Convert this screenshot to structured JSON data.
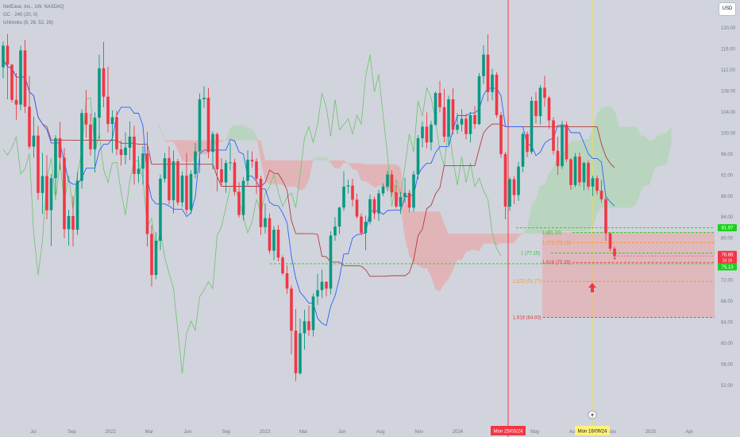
{
  "legend": {
    "symbol_line": "NetEase, Inc., 1W, NASDAQ",
    "indicator_1": "GC · 240 (20, 0)",
    "indicator_2": "Ichimoku (9, 26, 52, 26)"
  },
  "currency_label": "USD",
  "colors": {
    "background": "#d1d4dc",
    "bull_candle": "#089981",
    "bear_candle": "#f23645",
    "cloud_bull": "#a5d6a7",
    "cloud_bear": "#ef9a9a",
    "lagging_line": "#6cc36c",
    "kijun_line": "#b33b3b",
    "tenkan_line": "#2962ff",
    "fib_green": "#1bd11b",
    "fib_orange": "#ff8c1a",
    "fib_red": "#e53935"
  },
  "chart_data": {
    "type": "candlestick",
    "title": "NetEase, Inc., 1W, NASDAQ",
    "y_axis": {
      "ticks": [
        120.0,
        116.0,
        112.0,
        108.0,
        104.0,
        100.0,
        96.0,
        92.0,
        88.0,
        84.0,
        80.0,
        76.0,
        72.0,
        68.0,
        64.0,
        60.0,
        56.0,
        52.0
      ],
      "range": [
        50.0,
        122.0
      ]
    },
    "x_axis": {
      "ticks": [
        "Jul",
        "Sep",
        "2022",
        "Mar",
        "Jun",
        "Sep",
        "2023",
        "Mar",
        "Jun",
        "Aug",
        "Nov",
        "2024",
        "Mar",
        "May",
        "Aug",
        "Nov",
        "2025",
        "Apr"
      ]
    },
    "price_labels": [
      {
        "text": "81.97",
        "color": "#1bd11b"
      },
      {
        "text": "76.66",
        "sub": "2d 1h",
        "color": "#f23645"
      },
      {
        "text": "75.13",
        "color": "#1bd11b"
      }
    ],
    "date_labels": [
      {
        "text": "Mon 25/03/24",
        "color": "#f23645"
      },
      {
        "text": "Mon 16/09/24",
        "color": "#fff176"
      }
    ],
    "fib_levels": [
      {
        "label": "1 (81.10)",
        "price": 81.1,
        "color": "#1bd11b"
      },
      {
        "label": "1.272 (79.15)",
        "price": 79.15,
        "color": "#ff8c1a"
      },
      {
        "label": "1 (77.15)",
        "price": 77.15,
        "color": "#1bd11b"
      },
      {
        "label": "1.618 (75.39)",
        "price": 75.39,
        "color": "#e53935"
      },
      {
        "label": "1.272 (71.77)",
        "price": 71.77,
        "color": "#ff8c1a"
      },
      {
        "label": "1.618 (64.93)",
        "price": 64.93,
        "color": "#e53935"
      }
    ],
    "annotations": [
      "1"
    ],
    "candles_ohlc": [
      [
        112.5,
        117.4,
        110.4,
        116.6
      ],
      [
        116.6,
        118.8,
        106.4,
        113.0
      ],
      [
        113.0,
        113.0,
        105.8,
        106.3
      ],
      [
        106.3,
        111.4,
        102.5,
        105.4
      ],
      [
        105.4,
        116.6,
        104.3,
        115.7
      ],
      [
        115.7,
        117.7,
        103.8,
        105.0
      ],
      [
        105.0,
        110.8,
        96.9,
        97.4
      ],
      [
        97.4,
        103.1,
        95.3,
        99.5
      ],
      [
        99.5,
        101.3,
        87.3,
        88.6
      ],
      [
        88.6,
        96.2,
        84.6,
        91.8
      ],
      [
        91.8,
        95.8,
        83.6,
        85.3
      ],
      [
        85.3,
        92.2,
        78.5,
        91.4
      ],
      [
        91.4,
        99.6,
        88.3,
        99.0
      ],
      [
        99.0,
        102.1,
        93.0,
        95.3
      ],
      [
        95.3,
        97.1,
        80.0,
        81.7
      ],
      [
        81.7,
        85.4,
        78.6,
        84.2
      ],
      [
        84.2,
        88.0,
        78.4,
        81.6
      ],
      [
        81.6,
        92.6,
        80.6,
        90.9
      ],
      [
        90.9,
        104.5,
        89.4,
        103.8
      ],
      [
        103.8,
        108.2,
        99.1,
        101.6
      ],
      [
        101.6,
        103.7,
        95.7,
        96.9
      ],
      [
        96.9,
        103.9,
        92.5,
        102.9
      ],
      [
        102.9,
        114.9,
        98.9,
        112.3
      ],
      [
        112.3,
        117.3,
        104.9,
        106.9
      ],
      [
        106.9,
        112.6,
        100.1,
        101.7
      ],
      [
        101.7,
        104.3,
        96.2,
        103.0
      ],
      [
        103.0,
        104.2,
        95.8,
        96.9
      ],
      [
        96.9,
        98.6,
        93.8,
        95.8
      ],
      [
        95.8,
        100.1,
        94.0,
        97.2
      ],
      [
        97.2,
        102.2,
        94.9,
        99.3
      ],
      [
        99.3,
        101.4,
        90.2,
        92.2
      ],
      [
        92.2,
        95.6,
        90.5,
        93.2
      ],
      [
        93.2,
        97.5,
        90.2,
        96.1
      ],
      [
        96.1,
        100.2,
        78.4,
        80.8
      ],
      [
        80.8,
        82.5,
        70.8,
        73.0
      ],
      [
        73.0,
        81.1,
        72.2,
        79.5
      ],
      [
        79.5,
        92.1,
        77.7,
        91.3
      ],
      [
        91.3,
        96.2,
        90.6,
        95.2
      ],
      [
        95.2,
        97.4,
        86.4,
        87.2
      ],
      [
        87.2,
        96.7,
        84.7,
        94.6
      ],
      [
        94.6,
        95.1,
        86.2,
        86.8
      ],
      [
        86.8,
        92.7,
        85.9,
        91.9
      ],
      [
        91.9,
        96.2,
        84.6,
        85.4
      ],
      [
        85.4,
        92.9,
        84.6,
        92.2
      ],
      [
        92.2,
        98.1,
        91.4,
        96.5
      ],
      [
        96.5,
        107.5,
        92.4,
        106.4
      ],
      [
        106.4,
        108.9,
        104.8,
        106.7
      ],
      [
        106.7,
        108.6,
        95.2,
        96.4
      ],
      [
        96.4,
        100.3,
        93.1,
        99.8
      ],
      [
        99.8,
        100.1,
        88.9,
        93.1
      ],
      [
        93.1,
        95.2,
        89.9,
        90.6
      ],
      [
        90.6,
        94.9,
        88.6,
        94.3
      ],
      [
        94.3,
        98.1,
        92.9,
        94.4
      ],
      [
        94.4,
        95.1,
        88.1,
        88.8
      ],
      [
        88.8,
        90.6,
        83.9,
        84.4
      ],
      [
        84.4,
        91.6,
        83.4,
        90.9
      ],
      [
        90.9,
        96.7,
        89.9,
        94.9
      ],
      [
        94.9,
        96.5,
        93.4,
        94.6
      ],
      [
        94.6,
        95.2,
        88.4,
        91.3
      ],
      [
        91.3,
        91.9,
        80.6,
        82.1
      ],
      [
        82.1,
        86.6,
        80.9,
        83.8
      ],
      [
        83.8,
        84.7,
        77.0,
        77.6
      ],
      [
        77.6,
        82.3,
        75.8,
        81.6
      ],
      [
        81.6,
        82.5,
        75.6,
        76.3
      ],
      [
        76.3,
        76.7,
        72.9,
        73.3
      ],
      [
        73.3,
        74.8,
        69.4,
        70.4
      ],
      [
        70.4,
        71.0,
        57.9,
        62.4
      ],
      [
        62.4,
        66.5,
        52.8,
        54.3
      ],
      [
        54.3,
        64.7,
        54.0,
        61.9
      ],
      [
        61.9,
        66.4,
        58.8,
        64.2
      ],
      [
        64.2,
        67.2,
        61.4,
        62.5
      ],
      [
        62.5,
        69.5,
        61.3,
        68.9
      ],
      [
        68.9,
        73.2,
        67.3,
        70.1
      ],
      [
        70.1,
        74.0,
        68.6,
        71.7
      ],
      [
        71.7,
        71.8,
        68.9,
        70.4
      ],
      [
        70.4,
        81.3,
        69.3,
        80.5
      ],
      [
        80.5,
        84.0,
        79.5,
        82.2
      ],
      [
        82.2,
        86.0,
        80.8,
        85.8
      ],
      [
        85.8,
        92.7,
        85.2,
        89.8
      ],
      [
        89.8,
        91.1,
        88.5,
        90.0
      ],
      [
        90.0,
        91.3,
        86.0,
        87.3
      ],
      [
        87.3,
        88.5,
        83.7,
        84.1
      ],
      [
        84.1,
        84.7,
        80.6,
        81.0
      ],
      [
        81.0,
        84.3,
        77.7,
        83.1
      ],
      [
        83.1,
        88.3,
        82.6,
        87.4
      ],
      [
        87.4,
        87.9,
        83.6,
        84.7
      ],
      [
        84.7,
        89.2,
        83.3,
        88.5
      ],
      [
        88.5,
        90.4,
        88.0,
        89.8
      ],
      [
        89.8,
        92.8,
        88.9,
        92.1
      ],
      [
        92.1,
        92.9,
        87.9,
        88.7
      ],
      [
        88.7,
        90.1,
        85.6,
        86.0
      ],
      [
        86.0,
        88.8,
        84.6,
        87.8
      ],
      [
        87.8,
        91.5,
        86.8,
        88.6
      ],
      [
        88.6,
        89.2,
        84.9,
        85.8
      ],
      [
        85.8,
        92.8,
        85.0,
        92.1
      ],
      [
        92.1,
        99.6,
        91.2,
        99.0
      ],
      [
        99.0,
        102.2,
        97.3,
        101.2
      ],
      [
        101.2,
        103.9,
        97.1,
        98.2
      ],
      [
        98.2,
        102.3,
        96.7,
        101.6
      ],
      [
        101.6,
        107.9,
        101.4,
        107.6
      ],
      [
        107.6,
        109.9,
        103.9,
        104.9
      ],
      [
        104.9,
        108.4,
        98.2,
        99.3
      ],
      [
        99.3,
        107.1,
        97.7,
        106.4
      ],
      [
        106.4,
        108.6,
        99.7,
        100.6
      ],
      [
        100.6,
        103.8,
        99.8,
        101.6
      ],
      [
        101.6,
        104.5,
        100.3,
        102.7
      ],
      [
        102.7,
        103.6,
        98.8,
        99.8
      ],
      [
        99.8,
        104.0,
        98.2,
        103.4
      ],
      [
        103.4,
        105.1,
        100.8,
        101.7
      ],
      [
        101.7,
        111.4,
        101.5,
        110.8
      ],
      [
        110.8,
        116.7,
        109.3,
        114.9
      ],
      [
        114.9,
        118.8,
        106.0,
        107.8
      ],
      [
        107.8,
        112.2,
        106.2,
        111.1
      ],
      [
        111.1,
        111.6,
        102.9,
        103.4
      ],
      [
        103.4,
        104.0,
        95.3,
        96.0
      ],
      [
        96.0,
        96.4,
        83.6,
        86.0
      ],
      [
        86.0,
        91.6,
        85.2,
        91.2
      ],
      [
        91.2,
        91.8,
        86.5,
        88.2
      ],
      [
        88.2,
        94.5,
        87.1,
        93.6
      ],
      [
        93.6,
        100.2,
        92.5,
        99.8
      ],
      [
        99.8,
        100.3,
        95.4,
        96.4
      ],
      [
        96.4,
        106.9,
        96.0,
        106.1
      ],
      [
        106.1,
        107.8,
        101.8,
        103.2
      ],
      [
        103.2,
        109.1,
        101.6,
        108.6
      ],
      [
        108.6,
        110.9,
        105.0,
        106.7
      ],
      [
        106.7,
        107.1,
        100.8,
        102.4
      ],
      [
        102.4,
        103.0,
        95.9,
        96.6
      ],
      [
        96.6,
        99.3,
        92.0,
        93.7
      ],
      [
        93.7,
        102.3,
        93.2,
        101.6
      ],
      [
        101.6,
        102.2,
        94.5,
        95.0
      ],
      [
        95.0,
        95.2,
        89.2,
        90.1
      ],
      [
        90.1,
        96.2,
        89.7,
        95.5
      ],
      [
        95.5,
        96.3,
        89.9,
        90.6
      ],
      [
        90.6,
        94.6,
        89.1,
        94.3
      ],
      [
        94.3,
        94.8,
        89.2,
        89.8
      ],
      [
        89.8,
        91.9,
        88.0,
        91.4
      ],
      [
        91.4,
        91.9,
        88.3,
        89.0
      ],
      [
        89.0,
        91.0,
        86.8,
        87.4
      ],
      [
        87.4,
        87.8,
        79.5,
        80.9
      ],
      [
        80.9,
        81.1,
        77.5,
        78.0
      ],
      [
        78.0,
        78.4,
        75.9,
        76.6
      ]
    ]
  }
}
